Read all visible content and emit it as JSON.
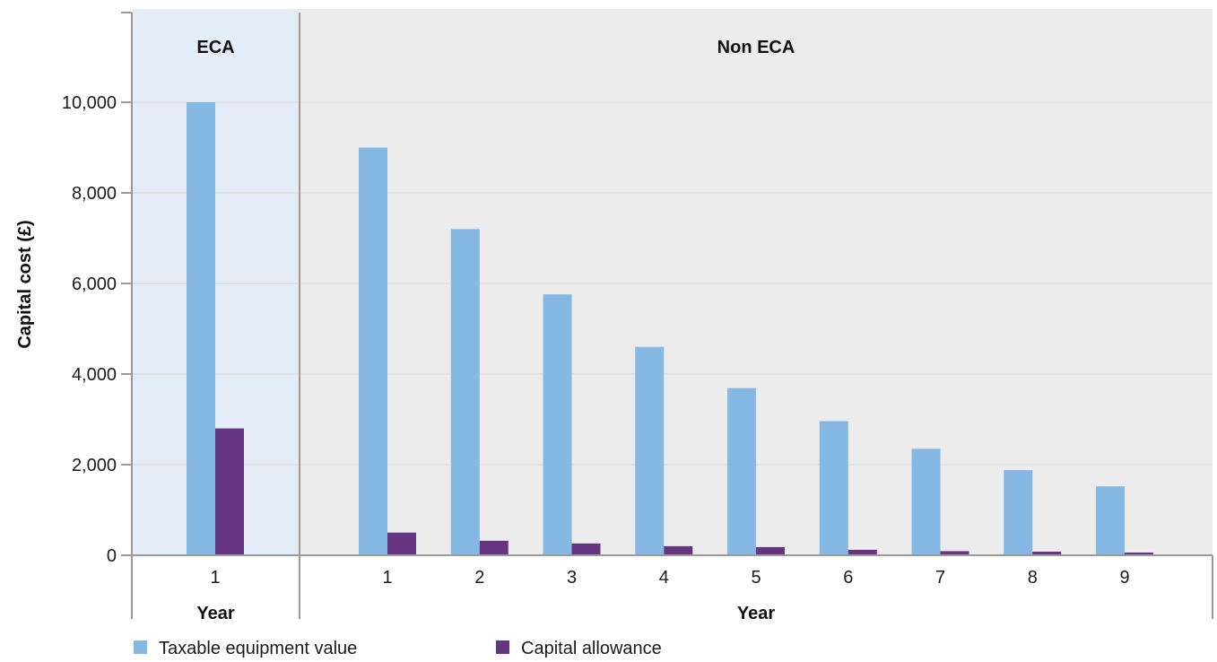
{
  "chart_data": {
    "type": "bar",
    "ylabel": "Capital cost (£)",
    "xlabel": "Year",
    "ylim": [
      0,
      11000
    ],
    "yticks": [
      0,
      2000,
      4000,
      6000,
      8000,
      10000
    ],
    "ytick_labels": [
      "0",
      "2,000",
      "4,000",
      "6,000",
      "8,000",
      "10,000"
    ],
    "grid": true,
    "legend_position": "bottom-left",
    "panels": [
      {
        "label": "ECA",
        "xlabel": "Year",
        "categories": [
          "1"
        ],
        "background": "#e4ecf7",
        "series": [
          {
            "name": "Taxable equipment value",
            "values": [
              10000
            ]
          },
          {
            "name": "Capital allowance",
            "values": [
              2800
            ]
          }
        ]
      },
      {
        "label": "Non ECA",
        "xlabel": "Year",
        "categories": [
          "1",
          "2",
          "3",
          "4",
          "5",
          "6",
          "7",
          "8",
          "9"
        ],
        "background": "#ececec",
        "series": [
          {
            "name": "Taxable equipment value",
            "values": [
              9000,
              7200,
              5760,
              4600,
              3690,
              2960,
              2350,
              1880,
              1520
            ]
          },
          {
            "name": "Capital allowance",
            "values": [
              500,
              320,
              260,
              200,
              180,
              120,
              90,
              80,
              60
            ]
          }
        ]
      }
    ],
    "legend": [
      {
        "name": "Taxable equipment value",
        "color": "#85b8e3"
      },
      {
        "name": "Capital allowance",
        "color": "#65357f"
      }
    ]
  }
}
